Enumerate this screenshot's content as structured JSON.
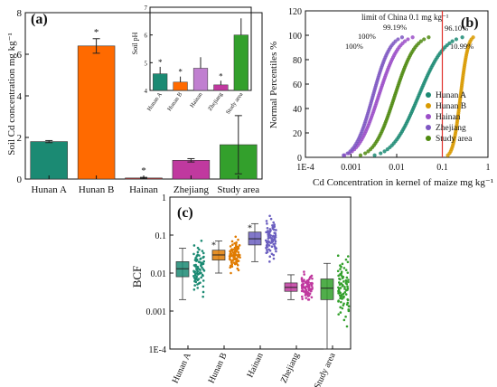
{
  "chart_data": [
    {
      "type": "bar",
      "panel_label": "(a)",
      "ylabel": "Soil Cd concentration mg kg⁻¹",
      "categories": [
        "Hunan A",
        "Hunan B",
        "Hainan",
        "Zhejiang",
        "Study area"
      ],
      "values": [
        1.8,
        6.4,
        0.05,
        0.9,
        1.65
      ],
      "errors": [
        0.05,
        0.35,
        0.03,
        0.08,
        1.4
      ],
      "significance": [
        "",
        "*",
        "*",
        "",
        ""
      ],
      "colors": [
        "#1b8a73",
        "#ff6a00",
        "#cc3d3d",
        "#c0399f",
        "#33a02c"
      ],
      "ylim": [
        0,
        8
      ],
      "yticks": [
        "0",
        "2",
        "4",
        "6",
        "8"
      ],
      "inset": {
        "type": "bar",
        "ylabel": "Soil pH",
        "categories": [
          "Hunan A",
          "Hunan B",
          "Hainan",
          "Zhejiang",
          "Study area"
        ],
        "values": [
          4.6,
          4.3,
          4.8,
          4.2,
          6.0
        ],
        "errors": [
          0.25,
          0.2,
          0.4,
          0.15,
          0.6
        ],
        "significance": [
          "*",
          "*",
          "",
          "*",
          ""
        ],
        "colors": [
          "#1b8a73",
          "#ff6a00",
          "#c07fd0",
          "#c0399f",
          "#33a02c"
        ],
        "ylim": [
          4,
          7
        ],
        "yticks": [
          "4",
          "5",
          "6",
          "7"
        ]
      }
    },
    {
      "type": "scatter",
      "panel_label": "(b)",
      "xlabel": "Cd Concentration in kernel of maize mg kg⁻¹",
      "ylabel": "Normal Percentiles %",
      "xscale": "log",
      "xlim": [
        0.0001,
        1
      ],
      "xticks": [
        "1E-4",
        "0.001",
        "0.01",
        "0.1",
        "1"
      ],
      "ylim": [
        0,
        120
      ],
      "yticks": [
        "0",
        "20",
        "40",
        "60",
        "80",
        "100",
        "120"
      ],
      "limit_label": "limit of China 0.1 mg kg⁻¹",
      "limit_value": 0.1,
      "series": [
        {
          "name": "Hunan A",
          "color": "#1b8a73",
          "median": 0.03,
          "spread": 0.45,
          "pct_label": "96.10%"
        },
        {
          "name": "Hunan B",
          "color": "#d99a00",
          "median": 0.25,
          "spread": 0.13,
          "pct_label": "10.99%"
        },
        {
          "name": "Hainan",
          "color": "#9b4fc8",
          "median": 0.004,
          "spread": 0.35,
          "pct_label": "100%"
        },
        {
          "name": "Zhejiang",
          "color": "#7e57c2",
          "median": 0.003,
          "spread": 0.3,
          "pct_label": "100%"
        },
        {
          "name": "Study area",
          "color": "#4f8a10",
          "median": 0.009,
          "spread": 0.35,
          "pct_label": "99.19%"
        }
      ],
      "legend_position": "right"
    },
    {
      "type": "box",
      "panel_label": "(c)",
      "ylabel": "BCF",
      "yscale": "log",
      "ylim": [
        0.0001,
        1
      ],
      "yticks": [
        "1E-4",
        "0.001",
        "0.01",
        "0.1",
        "1"
      ],
      "categories": [
        "Hunan A",
        "Hunan B",
        "Hainan",
        "Zhejiang",
        "Study area"
      ],
      "boxes": [
        {
          "q1": 0.008,
          "median": 0.013,
          "q3": 0.02,
          "whisker_low": 0.002,
          "whisker_high": 0.045,
          "color": "#1b8a73",
          "sig": ""
        },
        {
          "q1": 0.022,
          "median": 0.03,
          "q3": 0.04,
          "whisker_low": 0.01,
          "whisker_high": 0.07,
          "color": "#e07b00",
          "sig": "*"
        },
        {
          "q1": 0.055,
          "median": 0.08,
          "q3": 0.12,
          "whisker_low": 0.02,
          "whisker_high": 0.2,
          "color": "#6b5fc0",
          "sig": "*"
        },
        {
          "q1": 0.0033,
          "median": 0.0042,
          "q3": 0.0055,
          "whisker_low": 0.002,
          "whisker_high": 0.009,
          "color": "#c0399f",
          "sig": ""
        },
        {
          "q1": 0.002,
          "median": 0.004,
          "q3": 0.007,
          "whisker_low": 0.0001,
          "whisker_high": 0.018,
          "color": "#33a02c",
          "sig": ""
        }
      ]
    }
  ]
}
